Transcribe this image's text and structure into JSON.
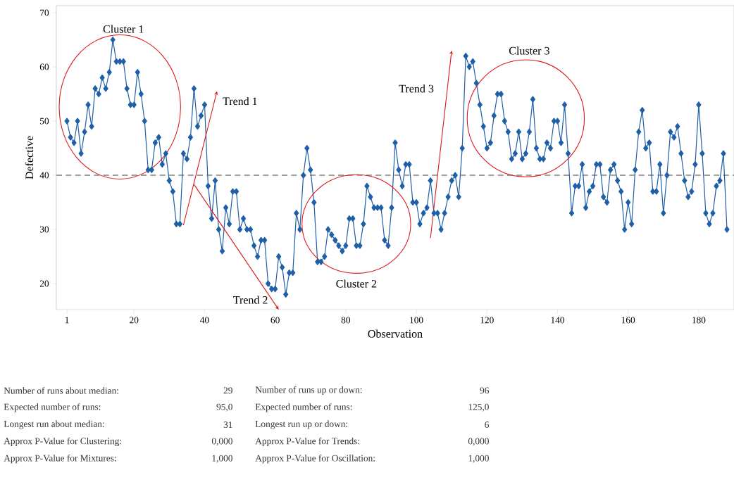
{
  "chart_data": {
    "type": "line",
    "xlabel": "Observation",
    "ylabel": "Defective",
    "x": [
      1,
      2,
      3,
      4,
      5,
      6,
      7,
      8,
      9,
      10,
      11,
      12,
      13,
      14,
      15,
      16,
      17,
      18,
      19,
      20,
      21,
      22,
      23,
      24,
      25,
      26,
      27,
      28,
      29,
      30,
      31,
      32,
      33,
      34,
      35,
      36,
      37,
      38,
      39,
      40,
      41,
      42,
      43,
      44,
      45,
      46,
      47,
      48,
      49,
      50,
      51,
      52,
      53,
      54,
      55,
      56,
      57,
      58,
      59,
      60,
      61,
      62,
      63,
      64,
      65,
      66,
      67,
      68,
      69,
      70,
      71,
      72,
      73,
      74,
      75,
      76,
      77,
      78,
      79,
      80,
      81,
      82,
      83,
      84,
      85,
      86,
      87,
      88,
      89,
      90,
      91,
      92,
      93,
      94,
      95,
      96,
      97,
      98,
      99,
      100,
      101,
      102,
      103,
      104,
      105,
      106,
      107,
      108,
      109,
      110,
      111,
      112,
      113,
      114,
      115,
      116,
      117,
      118,
      119,
      120,
      121,
      122,
      123,
      124,
      125,
      126,
      127,
      128,
      129,
      130,
      131,
      132,
      133,
      134,
      135,
      136,
      137,
      138,
      139,
      140,
      141,
      142,
      143,
      144,
      145,
      146,
      147,
      148,
      149,
      150,
      151,
      152,
      153,
      154,
      155,
      156,
      157,
      158,
      159,
      160,
      161,
      162,
      163,
      164,
      165,
      166,
      167,
      168,
      169,
      170,
      171,
      172,
      173,
      174,
      175,
      176,
      177,
      178,
      179,
      180,
      181,
      182,
      183,
      184,
      185,
      186,
      187,
      188
    ],
    "series": [
      {
        "color": "#1f5fa8",
        "values": [
          50,
          47,
          46,
          50,
          44,
          48,
          53,
          49,
          56,
          55,
          58,
          56,
          59,
          65,
          61,
          61,
          61,
          56,
          53,
          53,
          59,
          55,
          50,
          41,
          41,
          46,
          47,
          42,
          44,
          39,
          37,
          31,
          31,
          44,
          43,
          47,
          56,
          49,
          51,
          53,
          38,
          32,
          39,
          30,
          26,
          34,
          31,
          37,
          37,
          30,
          32,
          30,
          30,
          27,
          25,
          28,
          28,
          20,
          19,
          19,
          25,
          23,
          18,
          22,
          22,
          33,
          30,
          40,
          45,
          41,
          35,
          24,
          24,
          25,
          30,
          29,
          28,
          27,
          26,
          27,
          32,
          32,
          27,
          27,
          31,
          38,
          36,
          34,
          34,
          34,
          28,
          27,
          34,
          46,
          41,
          38,
          42,
          42,
          35,
          35,
          31,
          33,
          34,
          39,
          33,
          33,
          30,
          33,
          36,
          39,
          40,
          36,
          45,
          62,
          60,
          61,
          57,
          53,
          49,
          45,
          46,
          51,
          55,
          55,
          50,
          48,
          43,
          44,
          48,
          43,
          44,
          48,
          54,
          45,
          43,
          43,
          46,
          45,
          50,
          50,
          46,
          53,
          44,
          33,
          38,
          38,
          42,
          34,
          37,
          38,
          42,
          42,
          36,
          35,
          41,
          42,
          39,
          37,
          30,
          35,
          31,
          41,
          48,
          52,
          45,
          46,
          37,
          37,
          42,
          33,
          40,
          48,
          47,
          49,
          44,
          39,
          36,
          37,
          42,
          53,
          44,
          33,
          31,
          33,
          38,
          39,
          44,
          30
        ]
      }
    ],
    "xlim": [
      -2,
      190
    ],
    "ylim": [
      15.2,
      71.3
    ],
    "xticks": [
      1,
      20,
      40,
      60,
      80,
      100,
      120,
      140,
      160,
      180
    ],
    "yticks": [
      20,
      30,
      40,
      50,
      60,
      70
    ],
    "marker": "diamond",
    "line_style": "solid",
    "grid": false,
    "ref_lines": [
      {
        "axis": "y",
        "value": 40,
        "color": "#a0a0a0",
        "line_style": "dashed"
      }
    ],
    "annotations": [
      "Cluster 1",
      {
        "text": "Trend 1",
        "x": 40,
        "y": 53
      },
      "Trend 2",
      "Cluster 2",
      "Trend 3",
      "Cluster 3",
      "Number of runs about median:",
      "29",
      "Number of runs up or down:",
      "96",
      "Expected number of runs:",
      "95,0",
      "Expected number of runs:",
      "125,0",
      "Longest run about median:",
      "31",
      "Longest run up or down:",
      "6",
      "Approx P-Value for Clustering:",
      "0,000",
      "Approx P-Value for Trends:",
      "0,000",
      "Approx P-Value for Mixtures:",
      "1,000",
      "Approx P-Value for Oscillation:",
      "1,000"
    ]
  }
}
